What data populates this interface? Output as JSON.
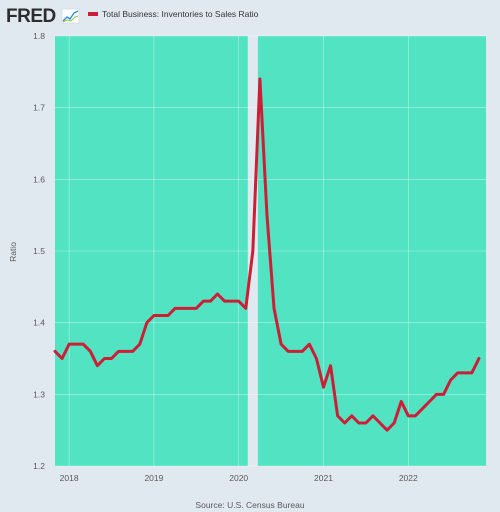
{
  "header": {
    "logo_text": "FRED",
    "logo_icon": "trend-chart-icon"
  },
  "footer": {
    "source": "Source: U.S. Census Bureau"
  },
  "colors": {
    "background": "#e1e9f0",
    "plot_fill": "#52e3c2",
    "gap_fill": "#e1e9f0",
    "line": "#cc1f36",
    "logo_accent": "#2e8fd4"
  },
  "chart_data": {
    "type": "line",
    "title": "",
    "xlabel": "",
    "ylabel": "Ratio",
    "ylim": [
      1.2,
      1.8
    ],
    "yticks": [
      "1.2",
      "1.3",
      "1.4",
      "1.5",
      "1.6",
      "1.7",
      "1.8"
    ],
    "xlim": [
      "2017-11",
      "2022-12"
    ],
    "xticks": [
      {
        "label": "2018",
        "date": "2018-01"
      },
      {
        "label": "2019",
        "date": "2019-01"
      },
      {
        "label": "2020",
        "date": "2020-01"
      },
      {
        "label": "2021",
        "date": "2021-01"
      },
      {
        "label": "2022",
        "date": "2022-01"
      }
    ],
    "grid": true,
    "legend_position": "top-left",
    "shaded_gap": {
      "start": "2020-02",
      "end": "2020-04"
    },
    "series": [
      {
        "name": "Total Business: Inventories to Sales Ratio",
        "color": "#cc1f36",
        "points": [
          [
            "2017-11",
            1.36
          ],
          [
            "2017-12",
            1.35
          ],
          [
            "2018-01",
            1.37
          ],
          [
            "2018-02",
            1.37
          ],
          [
            "2018-03",
            1.37
          ],
          [
            "2018-04",
            1.36
          ],
          [
            "2018-05",
            1.34
          ],
          [
            "2018-06",
            1.35
          ],
          [
            "2018-07",
            1.35
          ],
          [
            "2018-08",
            1.36
          ],
          [
            "2018-09",
            1.36
          ],
          [
            "2018-10",
            1.36
          ],
          [
            "2018-11",
            1.37
          ],
          [
            "2018-12",
            1.4
          ],
          [
            "2019-01",
            1.41
          ],
          [
            "2019-02",
            1.41
          ],
          [
            "2019-03",
            1.41
          ],
          [
            "2019-04",
            1.42
          ],
          [
            "2019-05",
            1.42
          ],
          [
            "2019-06",
            1.42
          ],
          [
            "2019-07",
            1.42
          ],
          [
            "2019-08",
            1.43
          ],
          [
            "2019-09",
            1.43
          ],
          [
            "2019-10",
            1.44
          ],
          [
            "2019-11",
            1.43
          ],
          [
            "2019-12",
            1.43
          ],
          [
            "2020-01",
            1.43
          ],
          [
            "2020-02",
            1.42
          ],
          [
            "2020-03",
            1.5
          ],
          [
            "2020-04",
            1.74
          ],
          [
            "2020-05",
            1.55
          ],
          [
            "2020-06",
            1.42
          ],
          [
            "2020-07",
            1.37
          ],
          [
            "2020-08",
            1.36
          ],
          [
            "2020-09",
            1.36
          ],
          [
            "2020-10",
            1.36
          ],
          [
            "2020-11",
            1.37
          ],
          [
            "2020-12",
            1.35
          ],
          [
            "2021-01",
            1.31
          ],
          [
            "2021-02",
            1.34
          ],
          [
            "2021-03",
            1.27
          ],
          [
            "2021-04",
            1.26
          ],
          [
            "2021-05",
            1.27
          ],
          [
            "2021-06",
            1.26
          ],
          [
            "2021-07",
            1.26
          ],
          [
            "2021-08",
            1.27
          ],
          [
            "2021-09",
            1.26
          ],
          [
            "2021-10",
            1.25
          ],
          [
            "2021-11",
            1.26
          ],
          [
            "2021-12",
            1.29
          ],
          [
            "2022-01",
            1.27
          ],
          [
            "2022-02",
            1.27
          ],
          [
            "2022-03",
            1.28
          ],
          [
            "2022-04",
            1.29
          ],
          [
            "2022-05",
            1.3
          ],
          [
            "2022-06",
            1.3
          ],
          [
            "2022-07",
            1.32
          ],
          [
            "2022-08",
            1.33
          ],
          [
            "2022-09",
            1.33
          ],
          [
            "2022-10",
            1.33
          ],
          [
            "2022-11",
            1.35
          ]
        ]
      }
    ]
  }
}
